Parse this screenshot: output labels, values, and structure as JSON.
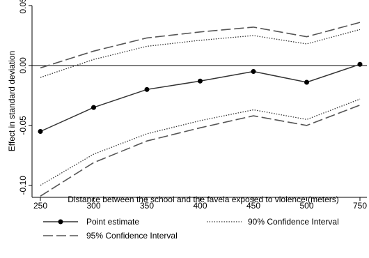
{
  "chart_data": {
    "type": "line",
    "title": "",
    "xlabel": "Distance between the school and the favela exposed to violence (meters)",
    "ylabel": "Effect in standard deviation",
    "x": [
      "250",
      "300",
      "350",
      "400",
      "450",
      "500",
      "750"
    ],
    "ylim": [
      -0.11,
      0.05
    ],
    "yticks": [
      0.05,
      0,
      -0.05,
      -0.1
    ],
    "ytick_labels": [
      "0.05",
      "0.00",
      "-0.05",
      "-0.10"
    ],
    "reference_line": 0,
    "grid": false,
    "legend_position": "bottom",
    "series": [
      {
        "name": "Point estimate",
        "style": "solid-markers",
        "color": "#333333",
        "values": [
          -0.055,
          -0.035,
          -0.02,
          -0.013,
          -0.005,
          -0.014,
          0.001
        ]
      },
      {
        "name": "90% Confidence Interval",
        "style": "dotted",
        "color": "#333333",
        "bound": "upper",
        "values": [
          -0.01,
          0.005,
          0.016,
          0.021,
          0.025,
          0.018,
          0.03
        ]
      },
      {
        "name": "90% Confidence Interval",
        "style": "dotted",
        "color": "#333333",
        "bound": "lower",
        "values": [
          -0.1,
          -0.074,
          -0.057,
          -0.046,
          -0.037,
          -0.045,
          -0.028
        ]
      },
      {
        "name": "95% Confidence Interval",
        "style": "long-dash",
        "color": "#555555",
        "bound": "upper",
        "values": [
          -0.002,
          0.012,
          0.023,
          0.028,
          0.032,
          0.024,
          0.036
        ]
      },
      {
        "name": "95% Confidence Interval",
        "style": "long-dash",
        "color": "#555555",
        "bound": "lower",
        "values": [
          -0.109,
          -0.081,
          -0.063,
          -0.052,
          -0.042,
          -0.05,
          -0.033
        ]
      }
    ],
    "legend": [
      {
        "label": "Point estimate",
        "style": "solid-markers"
      },
      {
        "label": "90% Confidence Interval",
        "style": "dotted"
      },
      {
        "label": "95% Confidence Interval",
        "style": "long-dash"
      }
    ]
  }
}
